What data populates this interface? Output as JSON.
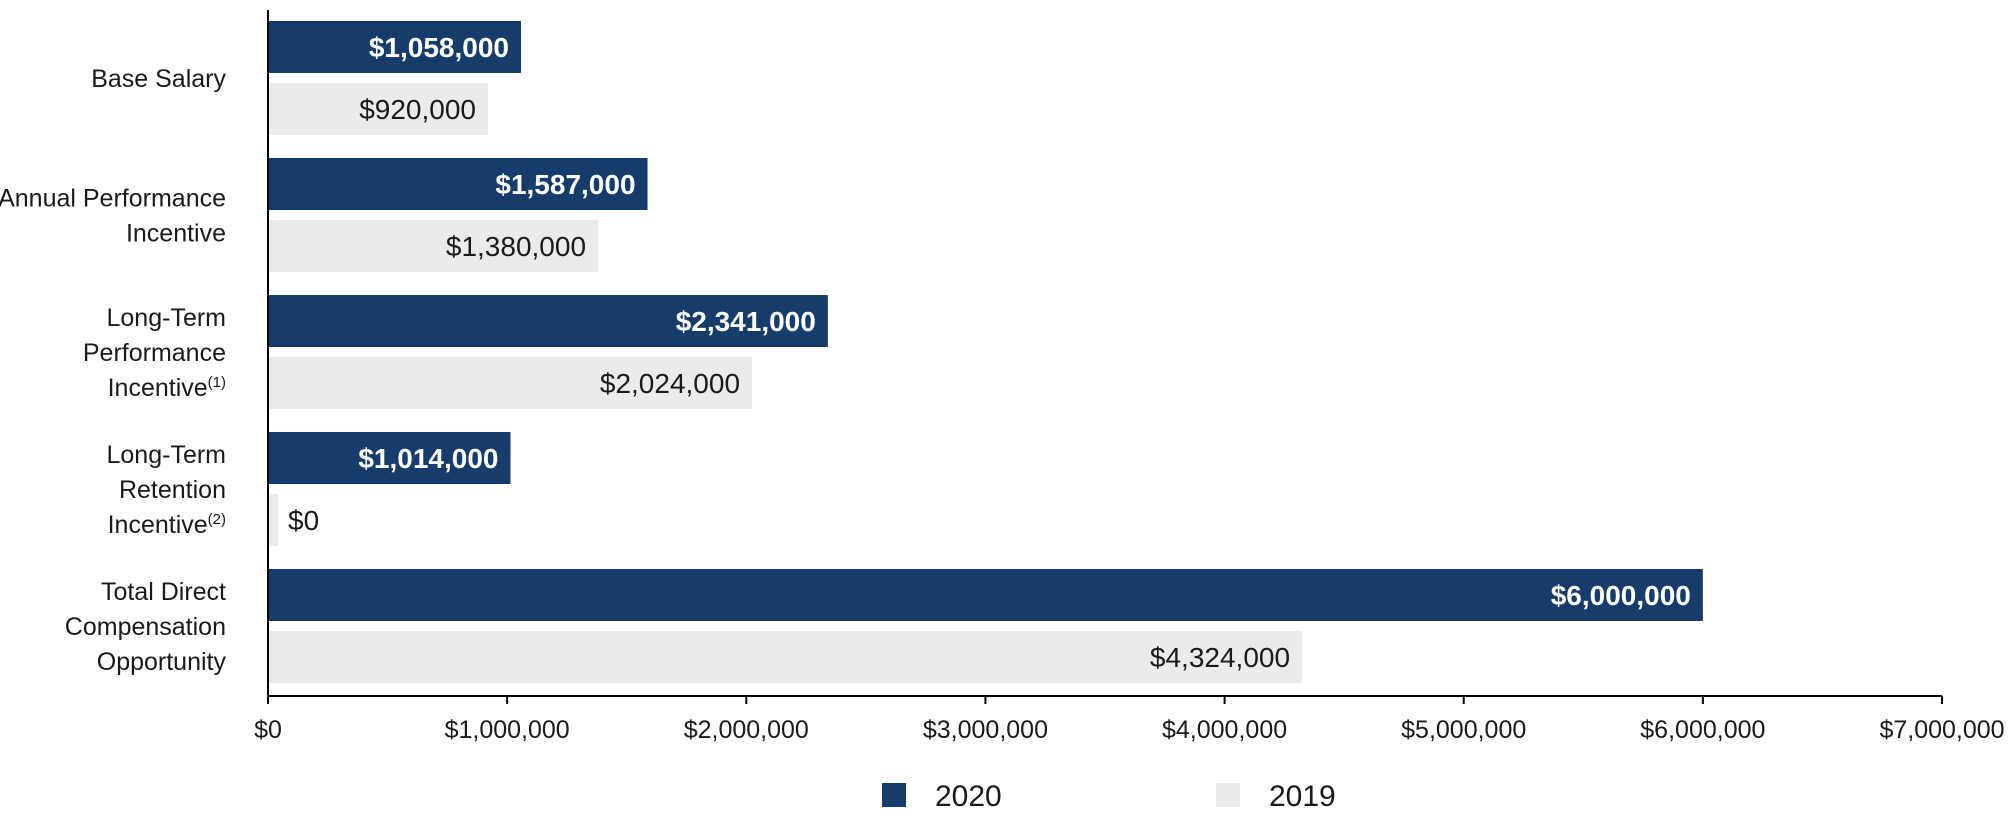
{
  "chart_data": {
    "type": "bar",
    "orientation": "horizontal",
    "categories": [
      {
        "lines": [
          "Base Salary"
        ],
        "sup": ""
      },
      {
        "lines": [
          "Annual Performance",
          "Incentive"
        ],
        "sup": ""
      },
      {
        "lines": [
          "Long-Term",
          "Performance",
          "Incentive"
        ],
        "sup": "(1)"
      },
      {
        "lines": [
          "Long-Term",
          "Retention",
          "Incentive"
        ],
        "sup": "(2)"
      },
      {
        "lines": [
          "Total Direct",
          "Compensation",
          "Opportunity"
        ],
        "sup": ""
      }
    ],
    "series": [
      {
        "name": "2020",
        "color": "#153c6b",
        "values": [
          1058000,
          1587000,
          2341000,
          1014000,
          6000000
        ],
        "labels": [
          "$1,058,000",
          "$1,587,000",
          "$2,341,000",
          "$1,014,000",
          "$6,000,000"
        ]
      },
      {
        "name": "2019",
        "color": "#ebebeb",
        "values": [
          920000,
          1380000,
          2024000,
          0,
          4324000
        ],
        "labels": [
          "$920,000",
          "$1,380,000",
          "$2,024,000",
          "$0",
          "$4,324,000"
        ]
      }
    ],
    "xlim": [
      0,
      7000000
    ],
    "xticks": [
      0,
      1000000,
      2000000,
      3000000,
      4000000,
      5000000,
      6000000,
      7000000
    ],
    "xtick_labels": [
      "$0",
      "$1,000,000",
      "$2,000,000",
      "$3,000,000",
      "$4,000,000",
      "$5,000,000",
      "$6,000,000",
      "$7,000,000"
    ],
    "grid": false,
    "legend_position": "bottom-center",
    "title": "",
    "xlabel": "",
    "ylabel": ""
  }
}
